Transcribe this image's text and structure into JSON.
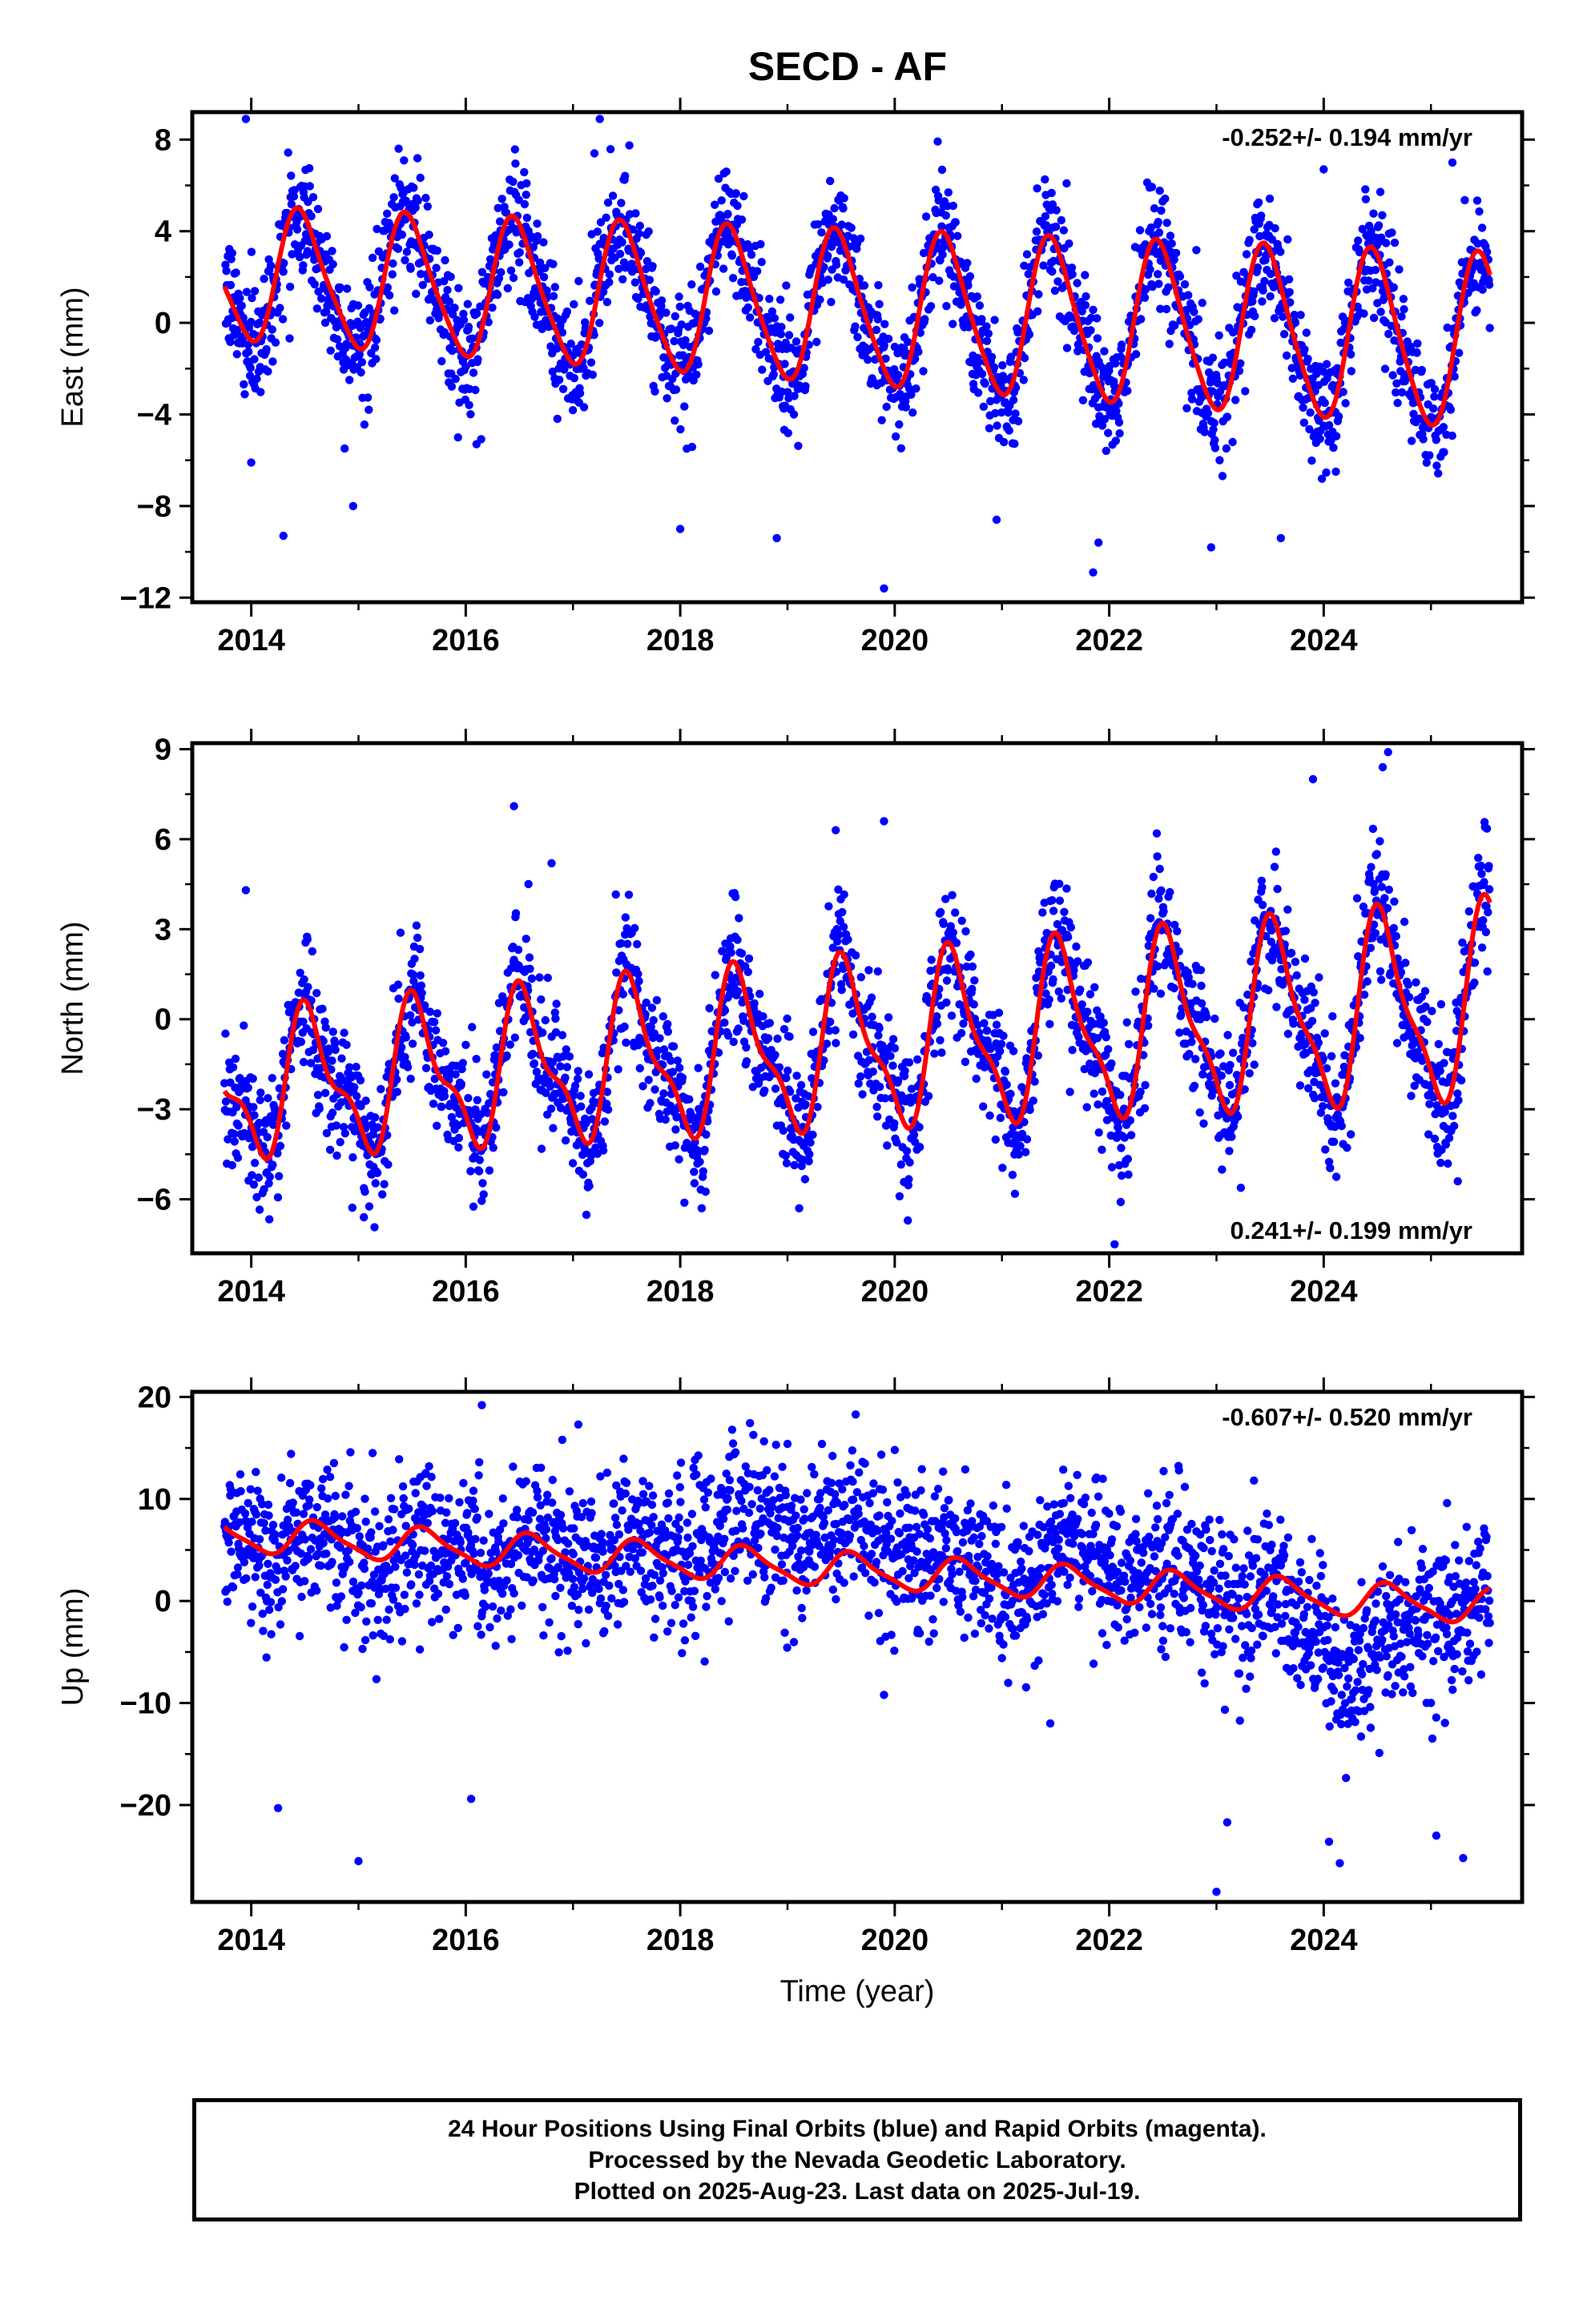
{
  "chart_data": {
    "title": "SECD - AF",
    "footer_lines": [
      "24 Hour Positions Using Final Orbits (blue) and Rapid Orbits (magenta).",
      "Processed by the Nevada Geodetic Laboratory.",
      "Plotted on 2025-Aug-23. Last data on 2025-Jul-19."
    ],
    "colors": {
      "final_orbits": "#0000ff",
      "model_fit": "#ff0000"
    },
    "panels": [
      {
        "name": "east",
        "type": "scatter",
        "ylabel": "East (mm)",
        "xlabel": "",
        "rate_label": "-0.252+/- 0.194 mm/yr",
        "rate_placement": "top-right",
        "xlim": [
          2013.45,
          2025.85
        ],
        "ylim": [
          -12.2,
          9.2
        ],
        "x_ticks": [
          2014,
          2016,
          2018,
          2020,
          2022,
          2024
        ],
        "x_tick_labels": [
          "2014",
          "2016",
          "2018",
          "2020",
          "2022",
          "2024"
        ],
        "y_ticks": [
          8,
          4,
          0,
          -4,
          -8,
          -12
        ],
        "y_tick_labels": [
          "8",
          "4",
          "0",
          "−4",
          "−8",
          "−12"
        ],
        "grid": false,
        "series": [
          {
            "role": "daily_positions",
            "time_range": [
              2013.75,
              2025.55
            ],
            "trend_mm_per_yr": -0.252,
            "offset_mm": 0.6,
            "annual_amplitude_mm": 2.8,
            "annual_peak": 0.47,
            "annual_amplitude_trend": 0.03,
            "semiannual_amplitude_mm": 0.5,
            "scatter_sd_mm": 1.3,
            "sample_spacing_yr": 0.0045
          },
          {
            "role": "model_fit",
            "time_range": [
              2013.75,
              2025.55
            ],
            "trend_mm_per_yr": -0.252,
            "offset_mm": 0.6,
            "annual_amplitude_mm": 2.8,
            "annual_peak": 0.47,
            "annual_amplitude_trend": 0.03,
            "semiannual_amplitude_mm": 0.5
          }
        ],
        "outliers": [
          [
            2013.95,
            8.9
          ],
          [
            2014.3,
            -9.3
          ],
          [
            2014.0,
            -6.1
          ],
          [
            2014.95,
            -8.0
          ],
          [
            2017.25,
            8.9
          ],
          [
            2017.2,
            7.4
          ],
          [
            2018.9,
            -9.4
          ],
          [
            2019.9,
            -11.6
          ],
          [
            2018.0,
            -9.0
          ],
          [
            2021.85,
            -10.9
          ],
          [
            2021.9,
            -9.6
          ],
          [
            2022.95,
            -9.8
          ],
          [
            2023.6,
            -9.4
          ],
          [
            2024.0,
            6.7
          ],
          [
            2025.2,
            7.0
          ],
          [
            2020.95,
            -8.6
          ],
          [
            2016.1,
            -5.3
          ]
        ]
      },
      {
        "name": "north",
        "type": "scatter",
        "ylabel": "North (mm)",
        "xlabel": "",
        "rate_label": "0.241+/- 0.199 mm/yr",
        "rate_placement": "bottom-right",
        "xlim": [
          2013.45,
          2025.85
        ],
        "ylim": [
          -7.8,
          9.2
        ],
        "x_ticks": [
          2014,
          2016,
          2018,
          2020,
          2022,
          2024
        ],
        "x_tick_labels": [
          "2014",
          "2016",
          "2018",
          "2020",
          "2022",
          "2024"
        ],
        "y_ticks": [
          9,
          6,
          3,
          0,
          -3,
          -6
        ],
        "y_tick_labels": [
          "9",
          "6",
          "3",
          "0",
          "−3",
          "−6"
        ],
        "grid": false,
        "series": [
          {
            "role": "daily_positions",
            "time_range": [
              2013.75,
              2025.55
            ],
            "trend_mm_per_yr": 0.241,
            "offset_mm": -0.9,
            "annual_amplitude_mm": 2.1,
            "annual_peak": 0.55,
            "annual_amplitude_trend": 0.04,
            "semiannual_amplitude_mm": 0.9,
            "scatter_sd_mm": 1.1,
            "sample_spacing_yr": 0.0045
          },
          {
            "role": "model_fit",
            "time_range": [
              2013.75,
              2025.55
            ],
            "trend_mm_per_yr": 0.241,
            "offset_mm": -0.9,
            "annual_amplitude_mm": 2.1,
            "annual_peak": 0.55,
            "annual_amplitude_trend": 0.04,
            "semiannual_amplitude_mm": 0.9
          }
        ],
        "outliers": [
          [
            2016.45,
            7.1
          ],
          [
            2019.45,
            6.3
          ],
          [
            2019.9,
            6.6
          ],
          [
            2023.9,
            8.0
          ],
          [
            2024.6,
            8.9
          ],
          [
            2024.55,
            8.4
          ],
          [
            2015.05,
            -6.6
          ],
          [
            2018.2,
            -6.3
          ],
          [
            2022.05,
            -7.5
          ],
          [
            2016.8,
            5.2
          ],
          [
            2013.95,
            4.3
          ],
          [
            2025.25,
            -5.4
          ]
        ]
      },
      {
        "name": "up",
        "type": "scatter",
        "ylabel": "Up (mm)",
        "xlabel": "Time (year)",
        "rate_label": "-0.607+/- 0.520 mm/yr",
        "rate_placement": "top-right",
        "xlim": [
          2013.45,
          2025.85
        ],
        "ylim": [
          -29.5,
          20.5
        ],
        "x_ticks": [
          2014,
          2016,
          2018,
          2020,
          2022,
          2024
        ],
        "x_tick_labels": [
          "2014",
          "2016",
          "2018",
          "2020",
          "2022",
          "2024"
        ],
        "y_ticks": [
          20,
          10,
          0,
          -10,
          -20
        ],
        "y_tick_labels": [
          "20",
          "10",
          "0",
          "−10",
          "−20"
        ],
        "grid": false,
        "series": [
          {
            "role": "daily_positions",
            "time_range": [
              2013.75,
              2025.55
            ],
            "trend_mm_per_yr": -0.607,
            "offset_mm": 3.0,
            "annual_amplitude_mm": 1.6,
            "annual_peak": 0.62,
            "annual_amplitude_trend": 0.0,
            "semiannual_amplitude_mm": 0.4,
            "scatter_sd_mm": 3.6,
            "sample_spacing_yr": 0.0045
          },
          {
            "role": "model_fit",
            "time_range": [
              2013.75,
              2025.55
            ],
            "trend_mm_per_yr": -0.607,
            "offset_mm": 3.0,
            "annual_amplitude_mm": 1.6,
            "annual_peak": 0.62,
            "annual_amplitude_trend": 0.0,
            "semiannual_amplitude_mm": 0.4
          }
        ],
        "anomalies": [
          {
            "range": [
              2013.75,
              2016.1
            ],
            "shift_mm": -1.5
          },
          {
            "range": [
              2017.5,
              2021.0
            ],
            "shift_mm": 4.0
          },
          {
            "range": [
              2021.0,
              2022.8
            ],
            "shift_mm": 2.5
          },
          {
            "range": [
              2023.6,
              2025.0
            ],
            "shift_mm": -6.0
          }
        ],
        "outliers": [
          [
            2016.15,
            19.2
          ],
          [
            2017.05,
            17.3
          ],
          [
            2016.9,
            15.8
          ],
          [
            2014.25,
            -20.3
          ],
          [
            2015.0,
            -25.5
          ],
          [
            2016.05,
            -19.4
          ],
          [
            2023.0,
            -28.5
          ],
          [
            2023.1,
            -21.7
          ],
          [
            2024.05,
            -23.6
          ],
          [
            2024.15,
            -25.7
          ],
          [
            2025.05,
            -23.0
          ],
          [
            2025.15,
            9.6
          ],
          [
            2025.3,
            -25.2
          ],
          [
            2019.0,
            15.4
          ],
          [
            2020.0,
            14.8
          ],
          [
            2023.35,
            11.8
          ],
          [
            2021.45,
            -12.0
          ],
          [
            2019.9,
            -9.2
          ]
        ]
      }
    ]
  }
}
